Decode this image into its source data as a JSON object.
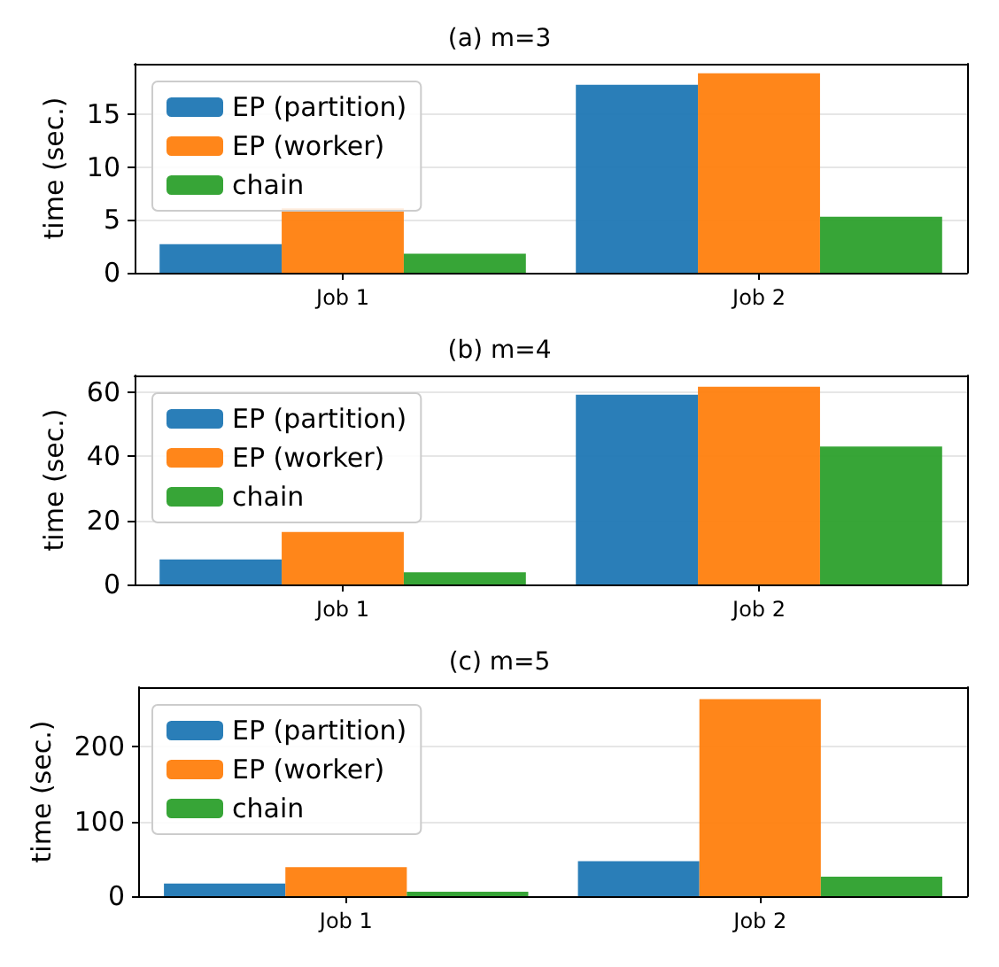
{
  "chart_data": [
    {
      "type": "bar",
      "title": "(a) m=3",
      "ylabel": "time (sec.)",
      "categories": [
        "Job 1",
        "Job 2"
      ],
      "series": [
        {
          "name": "EP (partition)",
          "color": "#1f77b4",
          "values": [
            2.7,
            17.8
          ]
        },
        {
          "name": "EP (worker)",
          "color": "#ff7f0e",
          "values": [
            6.1,
            18.9
          ]
        },
        {
          "name": "chain",
          "color": "#2ca02c",
          "values": [
            1.8,
            5.3
          ]
        }
      ],
      "ylim": [
        0,
        19.8
      ],
      "yticks": [
        0,
        5,
        10,
        15
      ],
      "grid": true,
      "legend": "top left"
    },
    {
      "type": "bar",
      "title": "(b) m=4",
      "ylabel": "time (sec.)",
      "categories": [
        "Job 1",
        "Job 2"
      ],
      "series": [
        {
          "name": "EP (partition)",
          "color": "#1f77b4",
          "values": [
            7.8,
            59.3
          ]
        },
        {
          "name": "EP (worker)",
          "color": "#ff7f0e",
          "values": [
            16.4,
            61.8
          ]
        },
        {
          "name": "chain",
          "color": "#2ca02c",
          "values": [
            3.8,
            43.1
          ]
        }
      ],
      "ylim": [
        0,
        65.3
      ],
      "yticks": [
        0,
        20,
        40,
        60
      ],
      "grid": true,
      "legend": "top left"
    },
    {
      "type": "bar",
      "title": "(c) m=5",
      "ylabel": "time (sec.)",
      "categories": [
        "Job 1",
        "Job 2"
      ],
      "series": [
        {
          "name": "EP (partition)",
          "color": "#1f77b4",
          "values": [
            17,
            47
          ]
        },
        {
          "name": "EP (worker)",
          "color": "#ff7f0e",
          "values": [
            39,
            264
          ]
        },
        {
          "name": "chain",
          "color": "#2ca02c",
          "values": [
            6,
            26
          ]
        }
      ],
      "ylim": [
        0,
        280
      ],
      "yticks": [
        0,
        100,
        200
      ],
      "grid": true,
      "legend": "top left"
    }
  ]
}
